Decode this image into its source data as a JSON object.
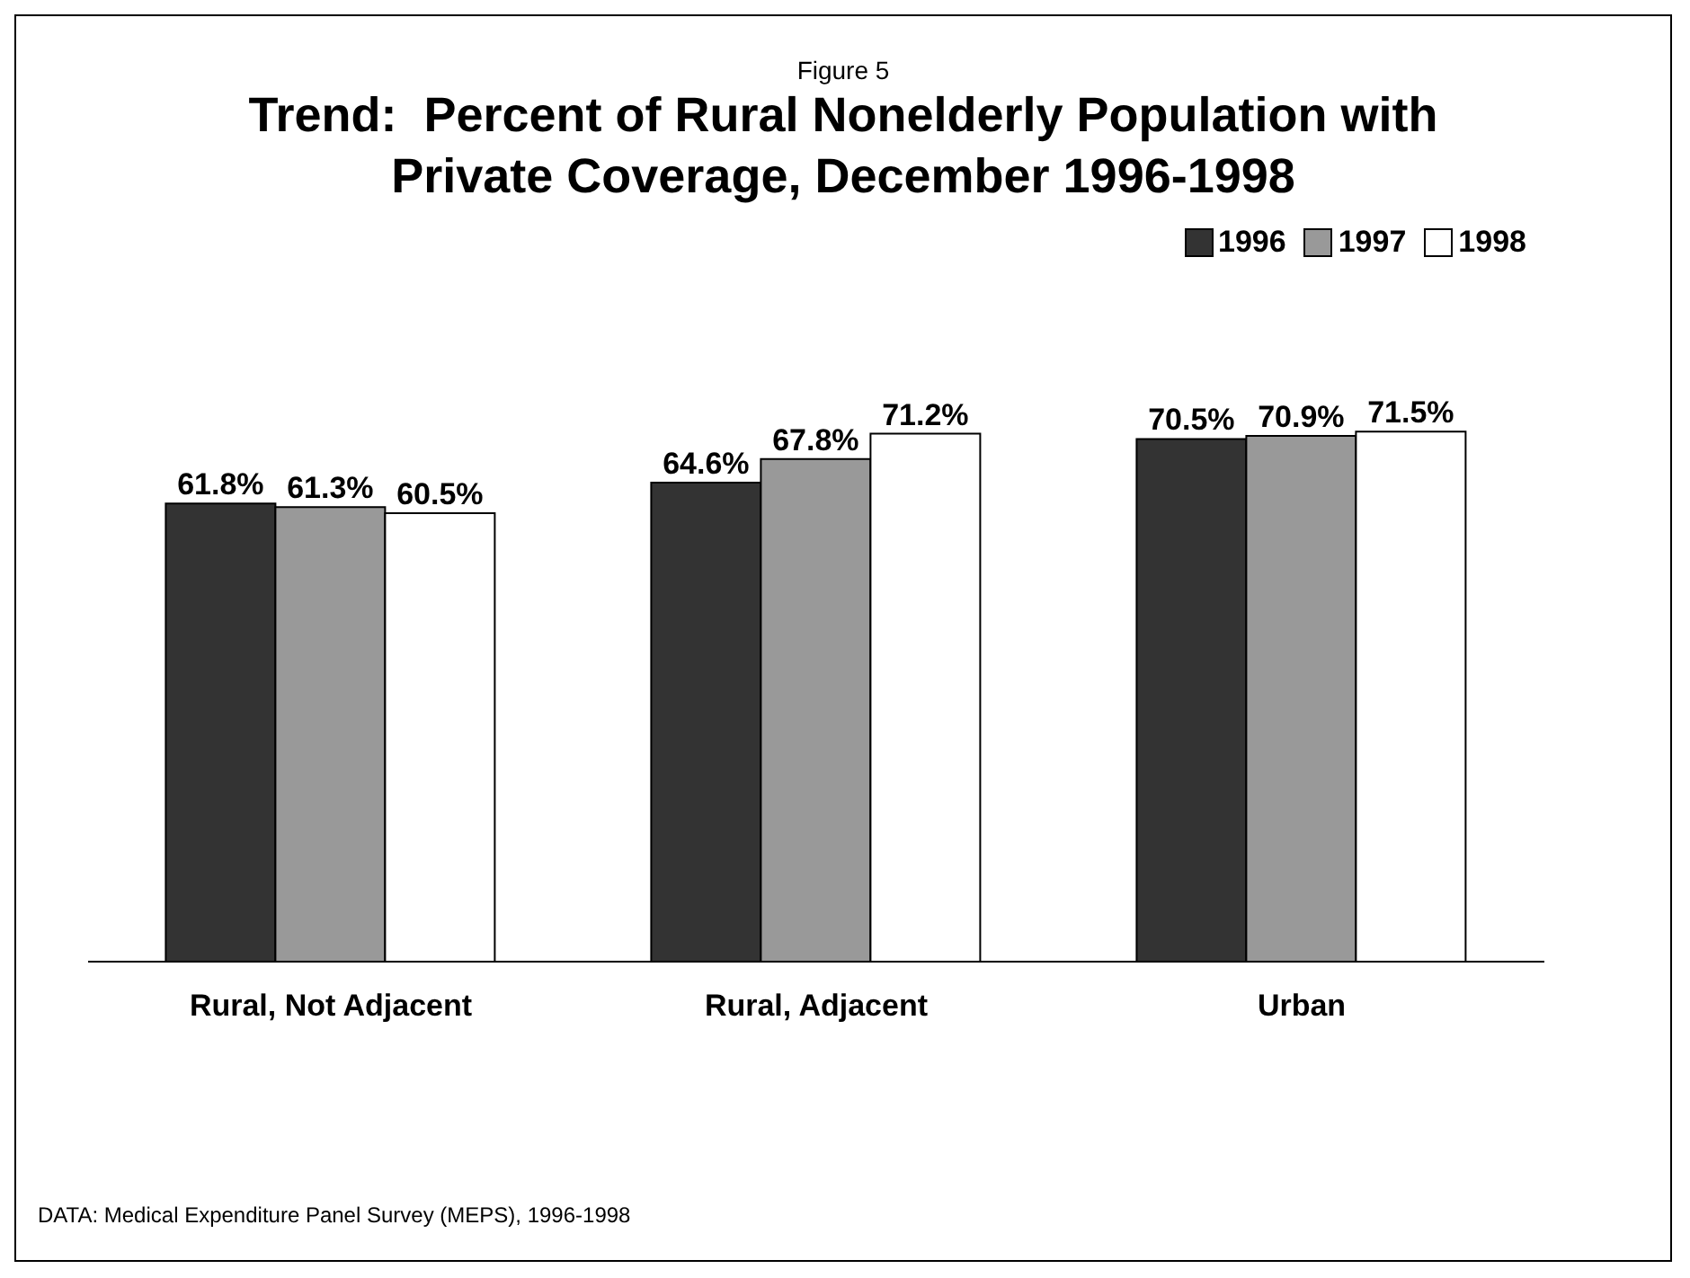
{
  "chart_data": {
    "type": "bar",
    "subtitle": "Figure 5",
    "title": "Trend:  Percent of Rural Nonelderly Population with Private Coverage, December 1996-1998",
    "categories": [
      "Rural, Not Adjacent",
      "Rural, Adjacent",
      "Urban"
    ],
    "series": [
      {
        "name": "1996",
        "color": "#333333",
        "values": [
          61.8,
          64.6,
          70.5
        ],
        "value_labels": [
          "61.8%",
          "64.6%",
          "70.5%"
        ]
      },
      {
        "name": "1997",
        "color": "#999999",
        "values": [
          61.3,
          67.8,
          70.9
        ],
        "value_labels": [
          "61.3%",
          "67.8%",
          "70.9%"
        ]
      },
      {
        "name": "1998",
        "color": "#ffffff",
        "values": [
          60.5,
          71.2,
          71.5
        ],
        "value_labels": [
          "60.5%",
          "71.2%",
          "71.5%"
        ]
      }
    ],
    "legend": "top right",
    "annotations": [
      "DATA: Medical Expenditure Panel Survey (MEPS), 1996-1998"
    ]
  }
}
